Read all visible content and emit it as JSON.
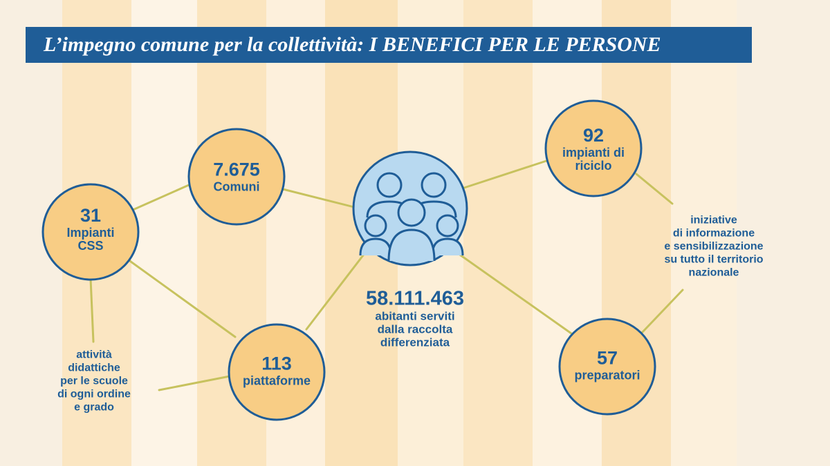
{
  "title": "L’impegno comune per la collettività: I BENEFICI PER LE PERSONE",
  "colors": {
    "navy": "#1f5d97",
    "node_fill": "#f8cd85",
    "center_fill": "#b8d9f0",
    "connector": "#c7c25e",
    "background": "#f8efe1"
  },
  "nodes": {
    "comuni": {
      "value": "7.675",
      "text": "Comuni"
    },
    "impianti_css": {
      "value": "31",
      "text": "Impianti CSS"
    },
    "piattaforme": {
      "value": "113",
      "text": "piattaforme"
    },
    "impianti_riciclo": {
      "value": "92",
      "text": "impianti di riciclo"
    },
    "preparatori": {
      "value": "57",
      "text": "preparatori"
    }
  },
  "center": {
    "icon": "people-group-icon",
    "value": "58.111.463",
    "text_lines": [
      "abitanti serviti",
      "dalla raccolta",
      "differenziata"
    ]
  },
  "notes": {
    "didattiche": [
      "attività",
      "didattiche",
      "per le scuole",
      "di ogni ordine",
      "e grado"
    ],
    "iniziative": [
      "iniziative",
      "di informazione",
      "e sensibilizzazione",
      "su tutto il territorio",
      "nazionale"
    ]
  }
}
